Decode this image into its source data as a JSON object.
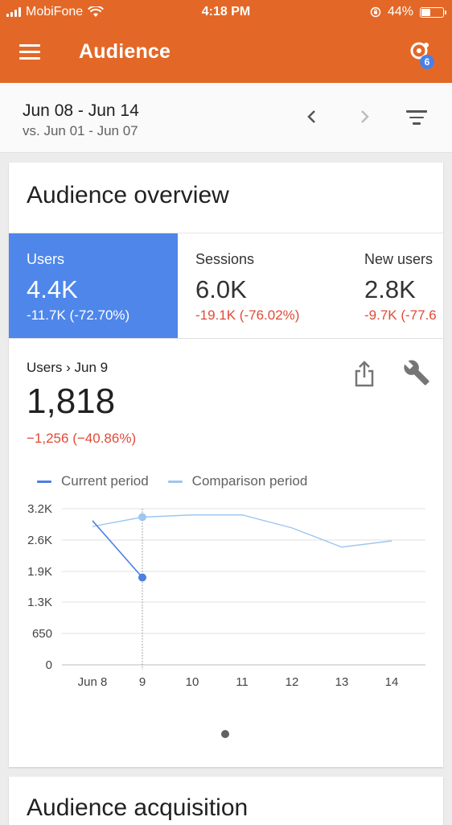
{
  "status_bar": {
    "carrier": "MobiFone",
    "time": "4:18 PM",
    "battery": "44%",
    "battery_level": 0.44
  },
  "app_bar": {
    "title": "Audience",
    "insights_badge": "6"
  },
  "date_range": {
    "current": "Jun 08 - Jun 14",
    "comparison": "vs. Jun 01 - Jun 07"
  },
  "overview": {
    "title": "Audience overview",
    "tabs": [
      {
        "label": "Users",
        "value": "4.4K",
        "delta": "-11.7K (-72.70%)"
      },
      {
        "label": "Sessions",
        "value": "6.0K",
        "delta": "-19.1K (-76.02%)"
      },
      {
        "label": "New users",
        "value": "2.8K",
        "delta": "-9.7K (-77.6"
      }
    ],
    "detail": {
      "label": "Users › Jun 9",
      "value": "1,818",
      "delta": "−1,256 (−40.86%)"
    }
  },
  "colors": {
    "brand": "#e36827",
    "current": "#4a7fe0",
    "comparison": "#9ec6ef",
    "negative": "#e04b37",
    "active_tab": "#4e86ea"
  },
  "chart_data": {
    "type": "line",
    "legend": [
      "Current period",
      "Comparison period"
    ],
    "categories": [
      "Jun 8",
      "9",
      "10",
      "11",
      "12",
      "13",
      "14"
    ],
    "y_ticks": [
      "0",
      "650",
      "1.3K",
      "1.9K",
      "2.6K",
      "3.2K"
    ],
    "ylim": [
      0,
      3250
    ],
    "series": [
      {
        "name": "Current period",
        "values": [
          3000,
          1818,
          null,
          null,
          null,
          null,
          null
        ]
      },
      {
        "name": "Comparison period",
        "values": [
          2880,
          3074,
          3120,
          3120,
          2850,
          2450,
          2580
        ]
      }
    ],
    "highlight_index": 1
  },
  "next_card": {
    "title": "Audience acquisition"
  }
}
